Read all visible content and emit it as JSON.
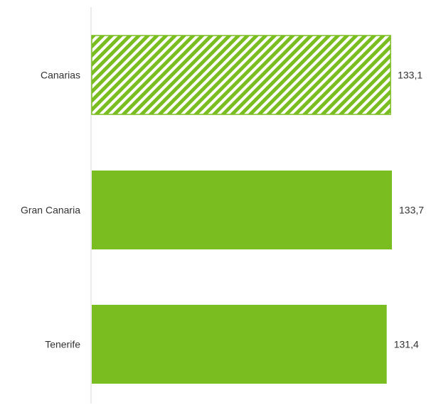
{
  "chart_data": {
    "type": "bar",
    "orientation": "horizontal",
    "title": "",
    "xlabel": "",
    "ylabel": "",
    "categories": [
      "Canarias",
      "Gran Canaria",
      "Tenerife"
    ],
    "values": [
      133.1,
      133.7,
      131.4
    ],
    "value_labels": [
      "133,1",
      "133,7",
      "131,4"
    ],
    "bar_styles": [
      "hatched",
      "solid",
      "solid"
    ],
    "xlim": [
      0,
      133.7
    ],
    "grid": false,
    "legend": "none",
    "colors": {
      "bar": "#7abd21",
      "hatch_background": "#ffffff",
      "axis": "#d9d9d9",
      "text": "#333333"
    }
  }
}
